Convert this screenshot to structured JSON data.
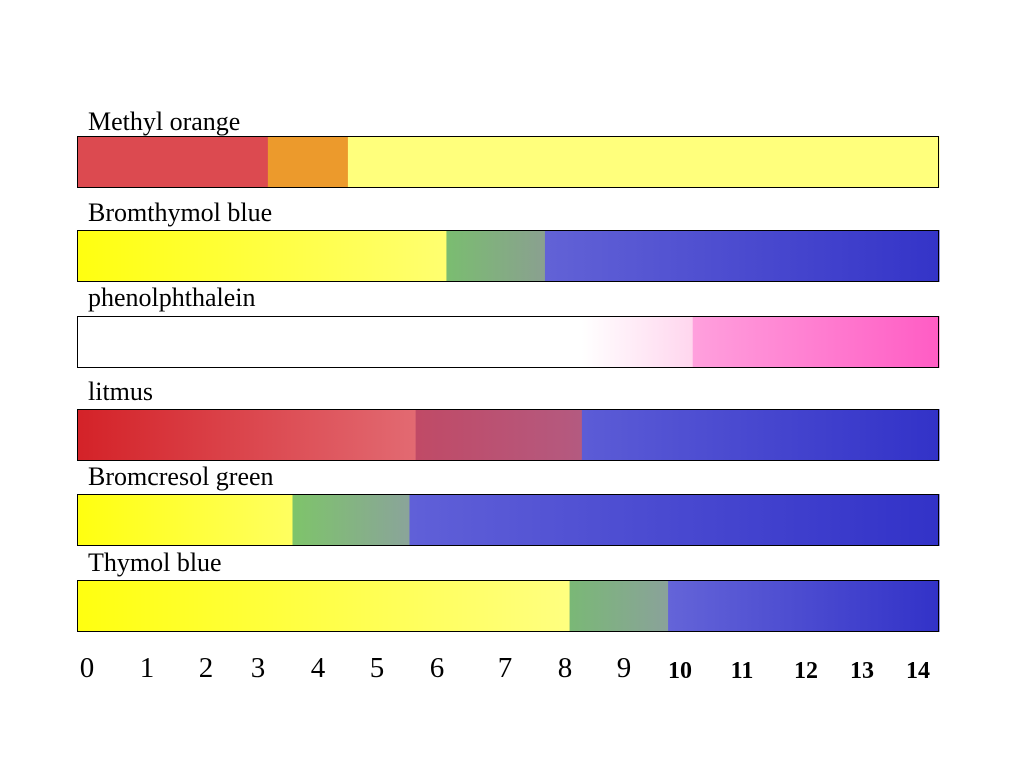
{
  "chart_data": {
    "type": "indicator-ranges",
    "xlabel": "",
    "xlim": [
      0,
      14
    ],
    "ticks": [
      "0",
      "1",
      "2",
      "3",
      "4",
      "5",
      "6",
      "7",
      "8",
      "9",
      "10",
      "11",
      "12",
      "13",
      "14"
    ],
    "indicators": [
      {
        "name": "Methyl orange",
        "segments": [
          {
            "from": 0,
            "to": 3.1,
            "colors": [
              "#dc4a50",
              "#dc4a50"
            ]
          },
          {
            "from": 3.1,
            "to": 4.4,
            "colors": [
              "#ec9a2c",
              "#ec9a2c"
            ]
          },
          {
            "from": 4.4,
            "to": 14,
            "colors": [
              "#ffff7c",
              "#ffff7c"
            ]
          }
        ]
      },
      {
        "name": "Bromthymol blue",
        "segments": [
          {
            "from": 0,
            "to": 6.0,
            "colors": [
              "#ffff10",
              "#ffff70"
            ]
          },
          {
            "from": 6.0,
            "to": 7.6,
            "colors": [
              "#7abd70",
              "#8aa090"
            ]
          },
          {
            "from": 7.6,
            "to": 14,
            "colors": [
              "#6262d6",
              "#3434c8"
            ]
          }
        ]
      },
      {
        "name": "phenolphthalein",
        "segments": [
          {
            "from": 0,
            "to": 8.2,
            "colors": [
              "#ffffff",
              "#ffffff"
            ]
          },
          {
            "from": 8.2,
            "to": 10.0,
            "colors": [
              "#ffffff",
              "#ffd6ee"
            ]
          },
          {
            "from": 10.0,
            "to": 14,
            "colors": [
              "#ffa0dd",
              "#ff5cc4"
            ]
          }
        ]
      },
      {
        "name": "litmus",
        "segments": [
          {
            "from": 0,
            "to": 5.5,
            "colors": [
              "#d42228",
              "#e26a72"
            ]
          },
          {
            "from": 5.5,
            "to": 8.2,
            "colors": [
              "#c04a66",
              "#b45a80"
            ]
          },
          {
            "from": 8.2,
            "to": 14,
            "colors": [
              "#5c5cd6",
              "#3232c8"
            ]
          }
        ]
      },
      {
        "name": "Bromcresol green",
        "segments": [
          {
            "from": 0,
            "to": 3.5,
            "colors": [
              "#ffff10",
              "#ffff60"
            ]
          },
          {
            "from": 3.5,
            "to": 5.4,
            "colors": [
              "#7ec46a",
              "#8aa49a"
            ]
          },
          {
            "from": 5.4,
            "to": 14,
            "colors": [
              "#6060d8",
              "#3232c8"
            ]
          }
        ]
      },
      {
        "name": "Thymol blue",
        "segments": [
          {
            "from": 0,
            "to": 8.0,
            "colors": [
              "#ffff10",
              "#ffff80"
            ]
          },
          {
            "from": 8.0,
            "to": 9.6,
            "colors": [
              "#7ab876",
              "#8aa29a"
            ]
          },
          {
            "from": 9.6,
            "to": 14,
            "colors": [
              "#6464d8",
              "#3232c8"
            ]
          }
        ]
      }
    ]
  }
}
